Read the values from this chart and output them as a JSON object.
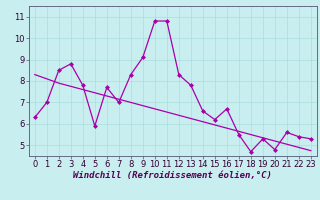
{
  "xlabel": "Windchill (Refroidissement éolien,°C)",
  "ylabel": "",
  "xlim": [
    -0.5,
    23.5
  ],
  "ylim": [
    4.5,
    11.5
  ],
  "yticks": [
    5,
    6,
    7,
    8,
    9,
    10,
    11
  ],
  "xticks": [
    0,
    1,
    2,
    3,
    4,
    5,
    6,
    7,
    8,
    9,
    10,
    11,
    12,
    13,
    14,
    15,
    16,
    17,
    18,
    19,
    20,
    21,
    22,
    23
  ],
  "bg_color": "#c8eef0",
  "grid_color": "#aadddd",
  "line_color": "#aa00aa",
  "line1_x": [
    0,
    1,
    2,
    3,
    4,
    5,
    6,
    7,
    8,
    9,
    10,
    11,
    12,
    13,
    14,
    15,
    16,
    17,
    18,
    19,
    20,
    21,
    22,
    23
  ],
  "line1_y": [
    6.3,
    7.0,
    8.5,
    8.8,
    7.8,
    5.9,
    7.7,
    7.0,
    8.3,
    9.1,
    10.8,
    10.8,
    8.3,
    7.8,
    6.6,
    6.2,
    6.7,
    5.5,
    4.7,
    5.3,
    4.8,
    5.6,
    5.4,
    5.3
  ],
  "line2_x": [
    0,
    1,
    2,
    3,
    4,
    5,
    6,
    7,
    8,
    9,
    10,
    11,
    12,
    13,
    14,
    15,
    16,
    17,
    18,
    19,
    20,
    21,
    22,
    23
  ],
  "line2_y": [
    8.3,
    8.1,
    7.9,
    7.75,
    7.6,
    7.45,
    7.3,
    7.15,
    7.0,
    6.85,
    6.7,
    6.55,
    6.4,
    6.25,
    6.1,
    5.95,
    5.8,
    5.65,
    5.5,
    5.35,
    5.2,
    5.05,
    4.9,
    4.75
  ],
  "font_size_tick": 6,
  "font_size_xlabel": 6.5,
  "spine_color": "#555577",
  "marker_size": 2.0,
  "line_width": 0.9
}
